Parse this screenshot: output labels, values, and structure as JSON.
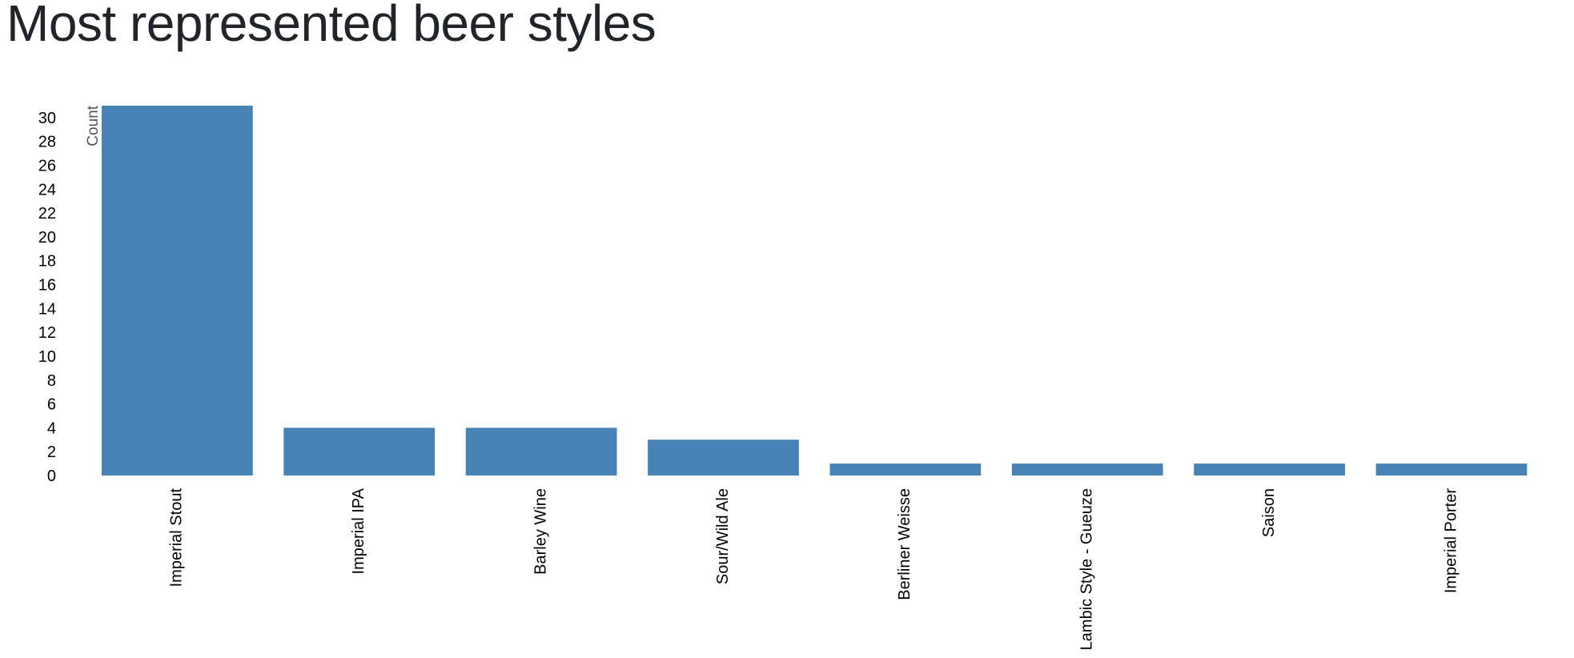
{
  "page": {
    "title": "Most represented beer styles"
  },
  "chart_data": {
    "type": "bar",
    "title": "Most represented beer styles",
    "xlabel": "",
    "ylabel": "Count",
    "categories": [
      "Imperial Stout",
      "Imperial IPA",
      "Barley Wine",
      "Sour/Wild Ale",
      "Berliner Weisse",
      "Lambic Style - Gueuze",
      "Saison",
      "Imperial Porter"
    ],
    "values": [
      31,
      4,
      4,
      3,
      1,
      1,
      1,
      1
    ],
    "ylim": [
      0,
      31
    ],
    "yticks": [
      0,
      2,
      4,
      6,
      8,
      10,
      12,
      14,
      16,
      18,
      20,
      22,
      24,
      26,
      28,
      30
    ],
    "grid": false,
    "legend": "none",
    "bar_color": "#4682b4"
  }
}
